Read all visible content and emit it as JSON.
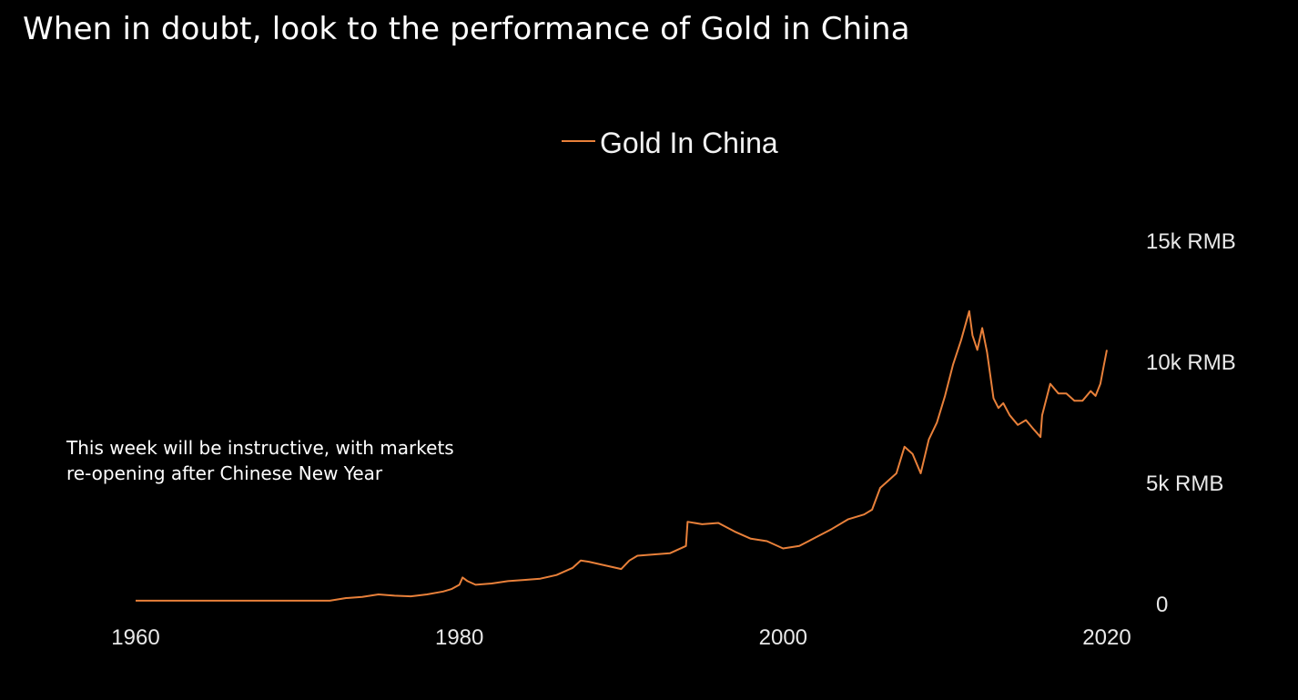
{
  "page": {
    "title": "When in doubt, look to the performance of Gold in China",
    "annotation_lines": [
      "This week will be instructive, with markets",
      "re-opening after Chinese New Year"
    ]
  },
  "colors": {
    "background": "#000000",
    "text": "#ffffff",
    "series": "#e8803a"
  },
  "chart_data": {
    "type": "line",
    "title": "",
    "xlabel": "",
    "ylabel": "",
    "xlim": [
      1960,
      2020
    ],
    "ylim": [
      0,
      15000
    ],
    "x_ticks": [
      1960,
      1980,
      2000,
      2020
    ],
    "x_tick_labels": [
      "1960",
      "1980",
      "2000",
      "2020"
    ],
    "y_ticks": [
      0,
      5000,
      10000,
      15000
    ],
    "y_tick_labels": [
      "0",
      "5k RMB",
      "10k RMB",
      "15k RMB"
    ],
    "y_axis_side": "right",
    "grid": false,
    "legend": {
      "position": "top-center",
      "entries": [
        "Gold In China"
      ]
    },
    "series": [
      {
        "name": "Gold In China",
        "color": "#e8803a",
        "x": [
          1960,
          1965,
          1970,
          1972,
          1973,
          1974,
          1975,
          1976,
          1977,
          1978,
          1979,
          1979.5,
          1980,
          1980.2,
          1980.5,
          1981,
          1982,
          1983,
          1984,
          1985,
          1986,
          1987,
          1987.5,
          1988,
          1989,
          1990,
          1990.5,
          1991,
          1992,
          1993,
          1994,
          1994.1,
          1995,
          1996,
          1997,
          1998,
          1999,
          2000,
          2001,
          2002,
          2003,
          2004,
          2005,
          2005.5,
          2006,
          2006.5,
          2007,
          2007.5,
          2008,
          2008.5,
          2009,
          2009.5,
          2010,
          2010.5,
          2011,
          2011.5,
          2011.7,
          2012,
          2012.3,
          2012.6,
          2013,
          2013.3,
          2013.6,
          2014,
          2014.5,
          2015,
          2015.5,
          2015.9,
          2016,
          2016.5,
          2017,
          2017.5,
          2018,
          2018.5,
          2019,
          2019.3,
          2019.6,
          2019.8,
          2020
        ],
        "y": [
          40,
          40,
          40,
          40,
          150,
          200,
          300,
          250,
          220,
          300,
          420,
          520,
          700,
          1000,
          850,
          700,
          750,
          850,
          900,
          950,
          1100,
          1400,
          1700,
          1650,
          1500,
          1350,
          1700,
          1900,
          1950,
          2000,
          2300,
          3300,
          3200,
          3250,
          2900,
          2600,
          2500,
          2200,
          2300,
          2650,
          3000,
          3400,
          3600,
          3800,
          4700,
          5000,
          5300,
          6400,
          6100,
          5300,
          6700,
          7400,
          8500,
          9800,
          10800,
          12000,
          11000,
          10400,
          11300,
          10300,
          8400,
          8000,
          8200,
          7700,
          7300,
          7500,
          7100,
          6800,
          7700,
          9000,
          8600,
          8600,
          8300,
          8300,
          8700,
          8500,
          9000,
          9700,
          10400
        ]
      }
    ]
  }
}
